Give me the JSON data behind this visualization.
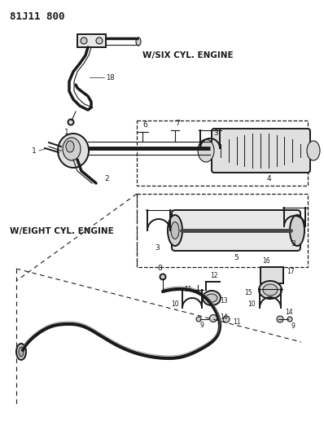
{
  "title": "81J11 800",
  "bg_color": "#ffffff",
  "line_color": "#1a1a1a",
  "label_six_cyl": "W/SIX CYL. ENGINE",
  "label_eight_cyl": "W/EIGHT CYL. ENGINE",
  "fig_w": 3.98,
  "fig_h": 5.33,
  "dpi": 100
}
